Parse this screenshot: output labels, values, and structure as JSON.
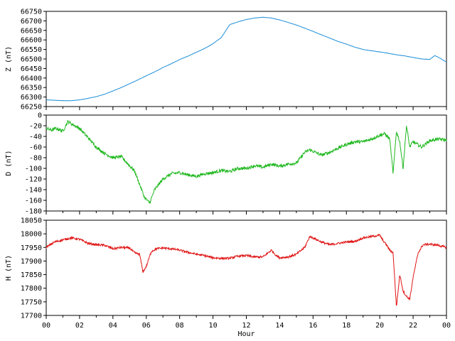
{
  "chart_data": [
    {
      "type": "line",
      "ylabel": "Z (nT)",
      "xlabel": "",
      "color": "#1f8fd8",
      "ylim": [
        66250,
        66750
      ],
      "yticks": [
        66250,
        66300,
        66350,
        66400,
        66450,
        66500,
        66550,
        66600,
        66650,
        66700,
        66750
      ],
      "xlim": [
        0,
        24
      ],
      "series": [
        {
          "x": [
            0,
            0.5,
            1,
            1.5,
            2,
            2.5,
            3,
            3.5,
            4,
            4.5,
            5,
            5.5,
            6,
            6.5,
            7,
            7.5,
            8,
            8.5,
            9,
            9.5,
            10,
            10.3,
            10.5,
            10.7,
            11,
            11.5,
            12,
            12.5,
            13,
            13.5,
            14,
            14.5,
            15,
            15.5,
            16,
            16.5,
            17,
            17.5,
            18,
            18.5,
            19,
            19.5,
            20,
            20.5,
            21,
            21.5,
            22,
            22.5,
            23,
            23.3,
            23.6,
            24
          ],
          "y": [
            66285,
            66283,
            66281,
            66281,
            66285,
            66293,
            66302,
            66315,
            66332,
            66350,
            66370,
            66390,
            66412,
            66432,
            66455,
            66475,
            66497,
            66515,
            66535,
            66555,
            66580,
            66600,
            66612,
            66640,
            66680,
            66695,
            66707,
            66715,
            66719,
            66715,
            66705,
            66692,
            66678,
            66662,
            66645,
            66627,
            66610,
            66592,
            66578,
            66562,
            66550,
            66543,
            66537,
            66530,
            66522,
            66516,
            66508,
            66500,
            66498,
            66518,
            66505,
            66483
          ]
        }
      ]
    },
    {
      "type": "line",
      "ylabel": "D (nT)",
      "xlabel": "",
      "color": "#1fb81f",
      "ylim": [
        -180,
        0
      ],
      "yticks": [
        -180,
        -160,
        -140,
        -120,
        -100,
        -80,
        -60,
        -40,
        -20,
        0
      ],
      "xlim": [
        0,
        24
      ],
      "series": [
        {
          "x": [
            0,
            0.3,
            0.6,
            1,
            1.3,
            1.6,
            2,
            2.5,
            3,
            3.5,
            4,
            4.5,
            5,
            5.3,
            5.6,
            5.9,
            6.2,
            6.5,
            7,
            7.5,
            8,
            8.5,
            9,
            9.5,
            10,
            10.5,
            11,
            11.5,
            12,
            12.5,
            13,
            13.5,
            14,
            14.5,
            15,
            15.5,
            15.8,
            16,
            16.5,
            17,
            17.5,
            18,
            18.5,
            19,
            19.5,
            20,
            20.3,
            20.6,
            20.8,
            21,
            21.2,
            21.4,
            21.6,
            21.8,
            22,
            22.5,
            23,
            23.5,
            24
          ],
          "y": [
            -25,
            -28,
            -25,
            -30,
            -12,
            -18,
            -25,
            -42,
            -60,
            -72,
            -80,
            -78,
            -95,
            -105,
            -130,
            -155,
            -165,
            -140,
            -120,
            -110,
            -108,
            -112,
            -115,
            -110,
            -108,
            -104,
            -106,
            -100,
            -100,
            -95,
            -98,
            -92,
            -96,
            -92,
            -90,
            -70,
            -65,
            -68,
            -75,
            -70,
            -62,
            -55,
            -50,
            -50,
            -45,
            -38,
            -35,
            -45,
            -110,
            -30,
            -50,
            -100,
            -20,
            -60,
            -50,
            -60,
            -48,
            -45,
            -47
          ]
        }
      ]
    },
    {
      "type": "line",
      "ylabel": "H (nT)",
      "xlabel": "Hour",
      "color": "#e01414",
      "ylim": [
        17700,
        18050
      ],
      "yticks": [
        17700,
        17750,
        17800,
        17850,
        17900,
        17950,
        18000,
        18050
      ],
      "xlim": [
        0,
        24
      ],
      "xticks": [
        "00",
        "02",
        "04",
        "06",
        "08",
        "10",
        "12",
        "14",
        "16",
        "18",
        "20",
        "22",
        "00"
      ],
      "series": [
        {
          "x": [
            0,
            0.5,
            1,
            1.5,
            2,
            2.5,
            3,
            3.5,
            4,
            4.5,
            5,
            5.3,
            5.6,
            5.8,
            6,
            6.3,
            6.6,
            7,
            7.5,
            8,
            8.5,
            9,
            9.5,
            10,
            10.5,
            11,
            11.5,
            12,
            12.5,
            13,
            13.5,
            13.8,
            14,
            14.5,
            15,
            15.5,
            15.8,
            16,
            16.5,
            17,
            17.5,
            18,
            18.5,
            19,
            19.5,
            20,
            20.2,
            20.4,
            20.6,
            20.8,
            21,
            21.2,
            21.4,
            21.6,
            21.8,
            22,
            22.3,
            22.6,
            23,
            23.5,
            24
          ],
          "y": [
            17950,
            17970,
            17978,
            17985,
            17980,
            17965,
            17960,
            17958,
            17945,
            17950,
            17948,
            17930,
            17925,
            17860,
            17880,
            17935,
            17945,
            17948,
            17945,
            17940,
            17932,
            17925,
            17920,
            17912,
            17910,
            17910,
            17918,
            17920,
            17915,
            17915,
            17940,
            17920,
            17912,
            17915,
            17925,
            17950,
            17990,
            17985,
            17970,
            17960,
            17965,
            17970,
            17972,
            17985,
            17990,
            17995,
            17975,
            17960,
            17940,
            17930,
            17730,
            17850,
            17790,
            17770,
            17760,
            17840,
            17930,
            17960,
            17962,
            17958,
            17950
          ]
        }
      ]
    }
  ]
}
